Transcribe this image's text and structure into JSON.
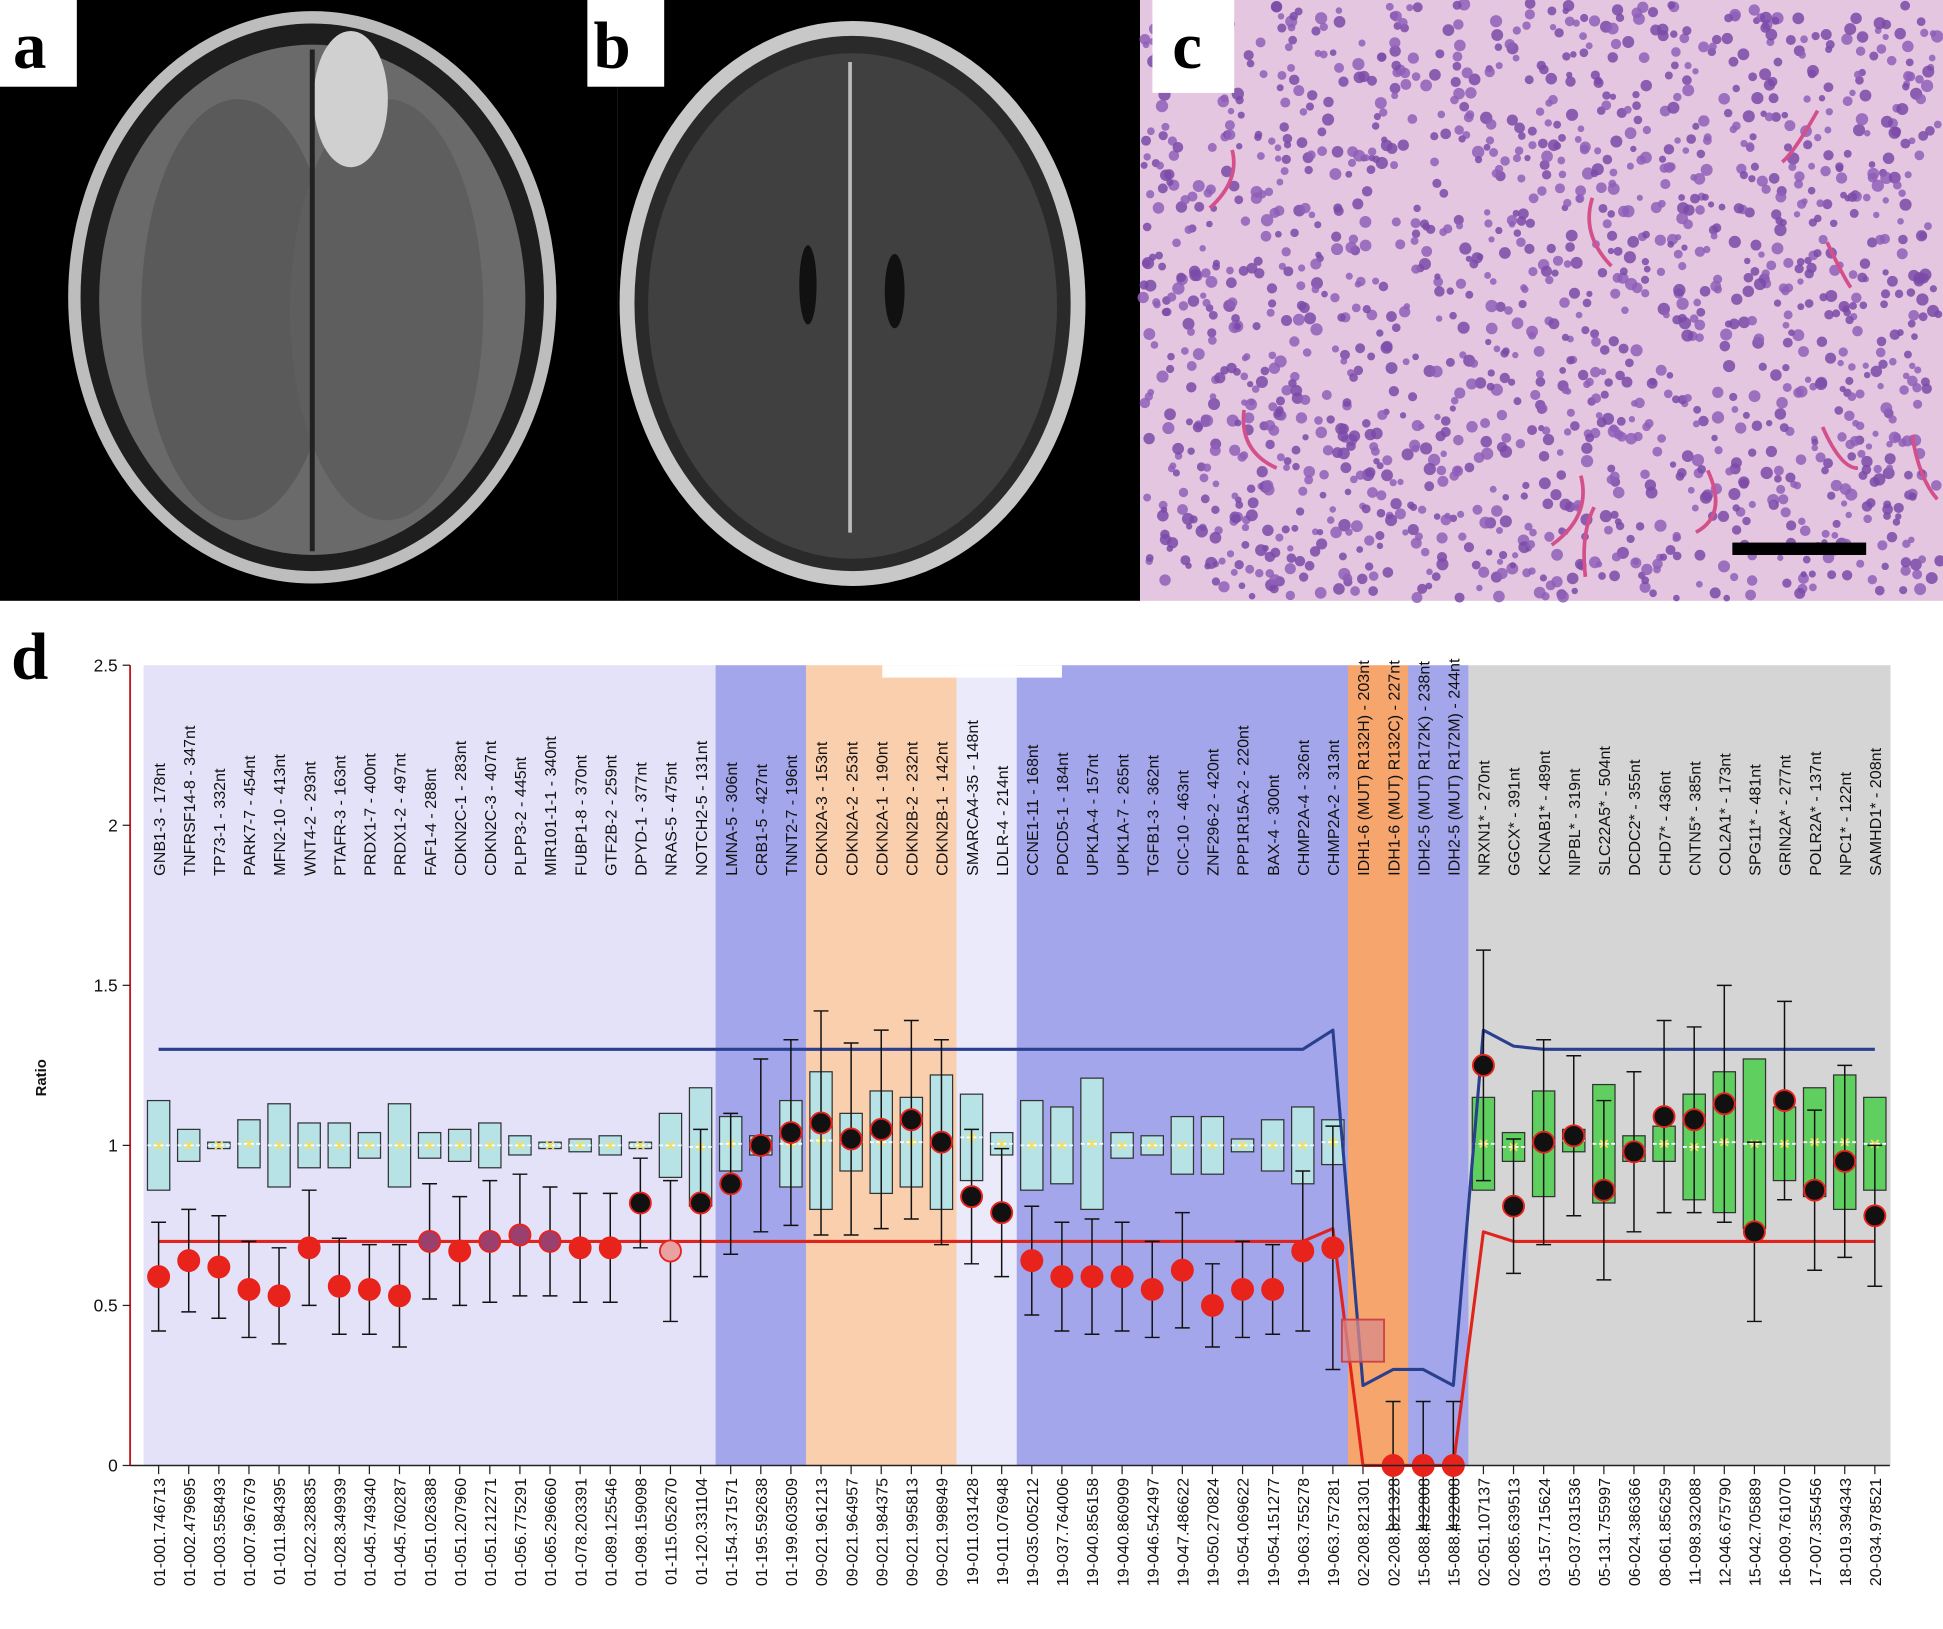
{
  "panels": {
    "a": "a",
    "b": "b",
    "c": "c",
    "d": "d"
  },
  "chart_data": {
    "type": "mlpa",
    "ylabel": "Ratio",
    "ylim": [
      0,
      2.5
    ],
    "yticks": [
      0,
      0.5,
      1,
      1.5,
      2,
      2.5
    ],
    "categories": [
      "GNB1-3 - 178nt",
      "TNFRSF14-8 - 347nt",
      "TP73-1 - 332nt",
      "PARK7-7 - 454nt",
      "MFN2-10 - 413nt",
      "WNT4-2 - 293nt",
      "PTAFR-3 - 163nt",
      "PRDX1-7 - 400nt",
      "PRDX1-2 - 497nt",
      "FAF1-4 - 288nt",
      "CDKN2C-1 - 283nt",
      "CDKN2C-3 - 407nt",
      "PLPP3-2 - 445nt",
      "MIR101-1-1 - 340nt",
      "FUBP1-8 - 370nt",
      "GTF2B-2 - 259nt",
      "DPYD-1 - 377nt",
      "NRAS-5 - 475nt",
      "NOTCH2-5 - 131nt",
      "LMNA-5 - 306nt",
      "CRB1-5 - 427nt",
      "TNNT2-7 - 196nt",
      "CDKN2A-3 - 153nt",
      "CDKN2A-2 - 253nt",
      "CDKN2A-1 - 190nt",
      "CDKN2B-2 - 232nt",
      "CDKN2B-1 - 142nt",
      "SMARCA4-35 - 148nt",
      "LDLR-4 - 214nt",
      "CCNE1-11 - 168nt",
      "PDCD5-1 - 184nt",
      "UPK1A-4 - 157nt",
      "UPK1A-7 - 265nt",
      "TGFB1-3 - 362nt",
      "CIC-10 - 463nt",
      "ZNF296-2 - 420nt",
      "PPP1R15A-2 - 220nt",
      "BAX-4 - 300nt",
      "CHMP2A-4 - 326nt",
      "CHMP2A-2 - 313nt",
      "IDH1-6 (MUT) R132H) - 203nt",
      "IDH1-6 (MUT) R132C) - 227nt",
      "IDH2-5 (MUT) R172K) - 238nt",
      "IDH2-5 (MUT) R172M) - 244nt",
      "NRXN1* - 270nt",
      "GGCX* - 391nt",
      "KCNAB1* - 489nt",
      "NIPBL* - 319nt",
      "SLC22A5* - 504nt",
      "DCDC2* - 355nt",
      "CHD7* - 436nt",
      "CNTN5* - 385nt",
      "COL2A1* - 173nt",
      "SPG11* - 481nt",
      "GRIN2A* - 277nt",
      "POLR2A* - 137nt",
      "NPC1* - 122nt",
      "SAMHD1* - 208nt"
    ],
    "positions": [
      "01-001.746713",
      "01-002.479695",
      "01-003.558493",
      "01-007.967679",
      "01-011.984395",
      "01-022.328835",
      "01-028.349939",
      "01-045.749340",
      "01-045.760287",
      "01-051.026388",
      "01-051.207960",
      "01-051.212271",
      "01-056.775291",
      "01-065.296660",
      "01-078.203391",
      "01-089.125546",
      "01-098.159098",
      "01-115.052670",
      "01-120.331104",
      "01-154.371571",
      "01-195.592638",
      "01-199.603509",
      "09-021.961213",
      "09-021.964957",
      "09-021.984375",
      "09-021.995813",
      "09-021.998949",
      "19-011.031428",
      "19-011.076948",
      "19-035.005212",
      "19-037.764006",
      "19-040.856158",
      "19-040.860909",
      "19-046.542497",
      "19-047.486622",
      "19-050.270824",
      "19-054.069622",
      "19-054.151277",
      "19-063.755278",
      "19-063.757281",
      "02-208.821301",
      "02-208.821328",
      "15-088.432808",
      "15-088.432808",
      "02-051.107137",
      "02-085.639513",
      "03-157.715624",
      "05-037.031536",
      "05-131.755997",
      "06-024.386366",
      "08-061.856259",
      "11-098.932088",
      "12-046.675790",
      "15-042.705889",
      "16-009.761070",
      "17-007.355456",
      "18-019.394343",
      "20-034.978521"
    ],
    "values": [
      0.59,
      0.64,
      0.62,
      0.55,
      0.53,
      0.68,
      0.56,
      0.55,
      0.53,
      0.7,
      0.67,
      0.7,
      0.72,
      0.7,
      0.68,
      0.68,
      0.82,
      0.67,
      0.82,
      0.88,
      1.0,
      1.04,
      1.07,
      1.02,
      1.05,
      1.08,
      1.01,
      0.84,
      0.79,
      0.64,
      0.59,
      0.59,
      0.59,
      0.55,
      0.61,
      0.5,
      0.55,
      0.55,
      0.67,
      0.68,
      0.39,
      0,
      0,
      0,
      1.25,
      0.81,
      1.01,
      1.03,
      0.86,
      0.98,
      1.09,
      1.08,
      1.13,
      0.73,
      1.14,
      0.86,
      0.95,
      0.78
    ],
    "errors": [
      0.17,
      0.16,
      0.16,
      0.15,
      0.15,
      0.18,
      0.15,
      0.14,
      0.16,
      0.18,
      0.17,
      0.19,
      0.19,
      0.17,
      0.17,
      0.17,
      0.14,
      0.22,
      0.23,
      0.22,
      0.27,
      0.29,
      0.35,
      0.3,
      0.31,
      0.31,
      0.32,
      0.21,
      0.2,
      0.17,
      0.17,
      0.18,
      0.17,
      0.15,
      0.18,
      0.13,
      0.15,
      0.14,
      0.25,
      0.38,
      null,
      0.2,
      0.2,
      0.2,
      0.36,
      0.21,
      0.32,
      0.25,
      0.28,
      0.25,
      0.3,
      0.29,
      0.37,
      0.28,
      0.31,
      0.25,
      0.3,
      0.22
    ],
    "box_low": [
      0.86,
      0.95,
      0.99,
      0.93,
      0.87,
      0.93,
      0.93,
      0.96,
      0.87,
      0.96,
      0.95,
      0.93,
      0.97,
      0.99,
      0.98,
      0.97,
      0.99,
      0.9,
      0.81,
      0.92,
      0.97,
      0.87,
      0.8,
      0.92,
      0.85,
      0.87,
      0.8,
      0.89,
      0.97,
      0.86,
      0.88,
      0.8,
      0.96,
      0.97,
      0.91,
      0.91,
      0.98,
      0.92,
      0.88,
      0.94,
      null,
      null,
      null,
      null,
      0.86,
      0.95,
      0.84,
      0.98,
      0.82,
      0.95,
      0.95,
      0.83,
      0.79,
      0.74,
      0.89,
      0.84,
      0.8,
      0.86
    ],
    "box_high": [
      1.14,
      1.05,
      1.01,
      1.08,
      1.13,
      1.07,
      1.07,
      1.04,
      1.13,
      1.04,
      1.05,
      1.07,
      1.03,
      1.01,
      1.02,
      1.03,
      1.01,
      1.1,
      1.18,
      1.09,
      1.03,
      1.14,
      1.23,
      1.1,
      1.17,
      1.15,
      1.22,
      1.16,
      1.04,
      1.14,
      1.12,
      1.21,
      1.04,
      1.03,
      1.09,
      1.09,
      1.02,
      1.08,
      1.12,
      1.08,
      null,
      null,
      null,
      null,
      1.15,
      1.04,
      1.17,
      1.05,
      1.19,
      1.03,
      1.06,
      1.16,
      1.23,
      1.27,
      1.12,
      1.18,
      1.22,
      1.15
    ],
    "upper_threshold": {
      "color": "#2b3f8f",
      "values": [
        1.3,
        1.3,
        1.3,
        1.3,
        1.3,
        1.3,
        1.3,
        1.3,
        1.3,
        1.3,
        1.3,
        1.3,
        1.3,
        1.3,
        1.3,
        1.3,
        1.3,
        1.3,
        1.3,
        1.3,
        1.3,
        1.3,
        1.3,
        1.3,
        1.3,
        1.3,
        1.3,
        1.3,
        1.3,
        1.3,
        1.3,
        1.3,
        1.3,
        1.3,
        1.3,
        1.3,
        1.3,
        1.3,
        1.3,
        1.36,
        0.25,
        0.3,
        0.3,
        0.25,
        1.36,
        1.31,
        1.3,
        1.3,
        1.3,
        1.3,
        1.3,
        1.3,
        1.3,
        1.3,
        1.3,
        1.3,
        1.3,
        1.3
      ]
    },
    "lower_threshold": {
      "color": "#e0231c",
      "values": [
        0.7,
        0.7,
        0.7,
        0.7,
        0.7,
        0.7,
        0.7,
        0.7,
        0.7,
        0.7,
        0.7,
        0.7,
        0.7,
        0.7,
        0.7,
        0.7,
        0.7,
        0.7,
        0.7,
        0.7,
        0.7,
        0.7,
        0.7,
        0.7,
        0.7,
        0.7,
        0.7,
        0.7,
        0.7,
        0.7,
        0.7,
        0.7,
        0.7,
        0.7,
        0.7,
        0.7,
        0.7,
        0.7,
        0.7,
        0.74,
        0,
        0,
        0,
        0,
        0.73,
        0.7,
        0.7,
        0.7,
        0.7,
        0.7,
        0.7,
        0.7,
        0.7,
        0.7,
        0.7,
        0.7,
        0.7,
        0.7
      ]
    },
    "markers": [
      "circle",
      "circle",
      "circle",
      "circle",
      "circle",
      "circle",
      "circle",
      "circle",
      "circle",
      "circle",
      "circle",
      "circle",
      "circle",
      "circle",
      "circle",
      "circle",
      "circle",
      "circle",
      "circle",
      "circle",
      "circle",
      "circle",
      "circle",
      "circle",
      "circle",
      "circle",
      "circle",
      "circle",
      "circle",
      "circle",
      "circle",
      "circle",
      "circle",
      "circle",
      "circle",
      "circle",
      "circle",
      "circle",
      "circle",
      "circle",
      "square",
      "circle",
      "circle",
      "circle",
      "circle",
      "circle",
      "circle",
      "circle",
      "circle",
      "circle",
      "circle",
      "circle",
      "circle",
      "circle",
      "circle",
      "circle",
      "circle",
      "circle"
    ],
    "dot_colors": [
      "#e8231c",
      "#e8231c",
      "#e8231c",
      "#e8231c",
      "#e8231c",
      "#e8231c",
      "#e8231c",
      "#e8231c",
      "#e8231c",
      "#9b3f6e",
      "#e8231c",
      "#9b3f6e",
      "#9b3f6e",
      "#9b3f6e",
      "#e8231c",
      "#e8231c",
      "#111111",
      "#e9a2a2",
      "#111111",
      "#111111",
      "#111111",
      "#111111",
      "#111111",
      "#111111",
      "#111111",
      "#111111",
      "#111111",
      "#111111",
      "#111111",
      "#e8231c",
      "#e8231c",
      "#e8231c",
      "#e8231c",
      "#e8231c",
      "#e8231c",
      "#e8231c",
      "#e8231c",
      "#e8231c",
      "#e8231c",
      "#e8231c",
      "#d98a8a",
      "#e8231c",
      "#e8231c",
      "#e8231c",
      "#111111",
      "#111111",
      "#111111",
      "#111111",
      "#111111",
      "#111111",
      "#111111",
      "#111111",
      "#111111",
      "#111111",
      "#111111",
      "#111111",
      "#111111",
      "#111111"
    ],
    "band_colors": [
      "#e4e2f8",
      "#e4e2f8",
      "#e4e2f8",
      "#e4e2f8",
      "#e4e2f8",
      "#e4e2f8",
      "#e4e2f8",
      "#e4e2f8",
      "#e4e2f8",
      "#e4e2f8",
      "#e4e2f8",
      "#e4e2f8",
      "#e4e2f8",
      "#e4e2f8",
      "#e4e2f8",
      "#e4e2f8",
      "#e4e2f8",
      "#e4e2f8",
      "#e4e2f8",
      "#a3a6ea",
      "#a3a6ea",
      "#a3a6ea",
      "#f9cfae",
      "#f9cfae",
      "#f9cfae",
      "#f9cfae",
      "#f9cfae",
      "#ebeafb",
      "#ebeafb",
      "#a3a6ea",
      "#a3a6ea",
      "#a3a6ea",
      "#a3a6ea",
      "#a3a6ea",
      "#a3a6ea",
      "#a3a6ea",
      "#a3a6ea",
      "#a3a6ea",
      "#a3a6ea",
      "#a3a6ea",
      "#f6a66c",
      "#f6a66c",
      "#a3a6ea",
      "#a3a6ea",
      "#d5d5d5",
      "#d5d5d5",
      "#d5d5d5",
      "#d5d5d5",
      "#d5d5d5",
      "#d5d5d5",
      "#d5d5d5",
      "#d5d5d5",
      "#d5d5d5",
      "#d5d5d5",
      "#d5d5d5",
      "#d5d5d5",
      "#d5d5d5",
      "#d5d5d5"
    ],
    "box_colors": [
      "#b7e2e6",
      "#b7e2e6",
      "#b7e2e6",
      "#b7e2e6",
      "#b7e2e6",
      "#b7e2e6",
      "#b7e2e6",
      "#b7e2e6",
      "#b7e2e6",
      "#b7e2e6",
      "#b7e2e6",
      "#b7e2e6",
      "#b7e2e6",
      "#b7e2e6",
      "#b7e2e6",
      "#b7e2e6",
      "#b7e2e6",
      "#b7e2e6",
      "#b7e2e6",
      "#b7e2e6",
      "#b7e2e6",
      "#b7e2e6",
      "#b7e2e6",
      "#b7e2e6",
      "#b7e2e6",
      "#b7e2e6",
      "#b7e2e6",
      "#b7e2e6",
      "#b7e2e6",
      "#b7e2e6",
      "#b7e2e6",
      "#b7e2e6",
      "#b7e2e6",
      "#b7e2e6",
      "#b7e2e6",
      "#b7e2e6",
      "#b7e2e6",
      "#b7e2e6",
      "#b7e2e6",
      "#b7e2e6",
      null,
      null,
      null,
      null,
      "#5fcf5f",
      "#5fcf5f",
      "#5fcf5f",
      "#5fcf5f",
      "#5fcf5f",
      "#5fcf5f",
      "#5fcf5f",
      "#5fcf5f",
      "#5fcf5f",
      "#5fcf5f",
      "#5fcf5f",
      "#5fcf5f",
      "#5fcf5f",
      "#5fcf5f"
    ]
  }
}
